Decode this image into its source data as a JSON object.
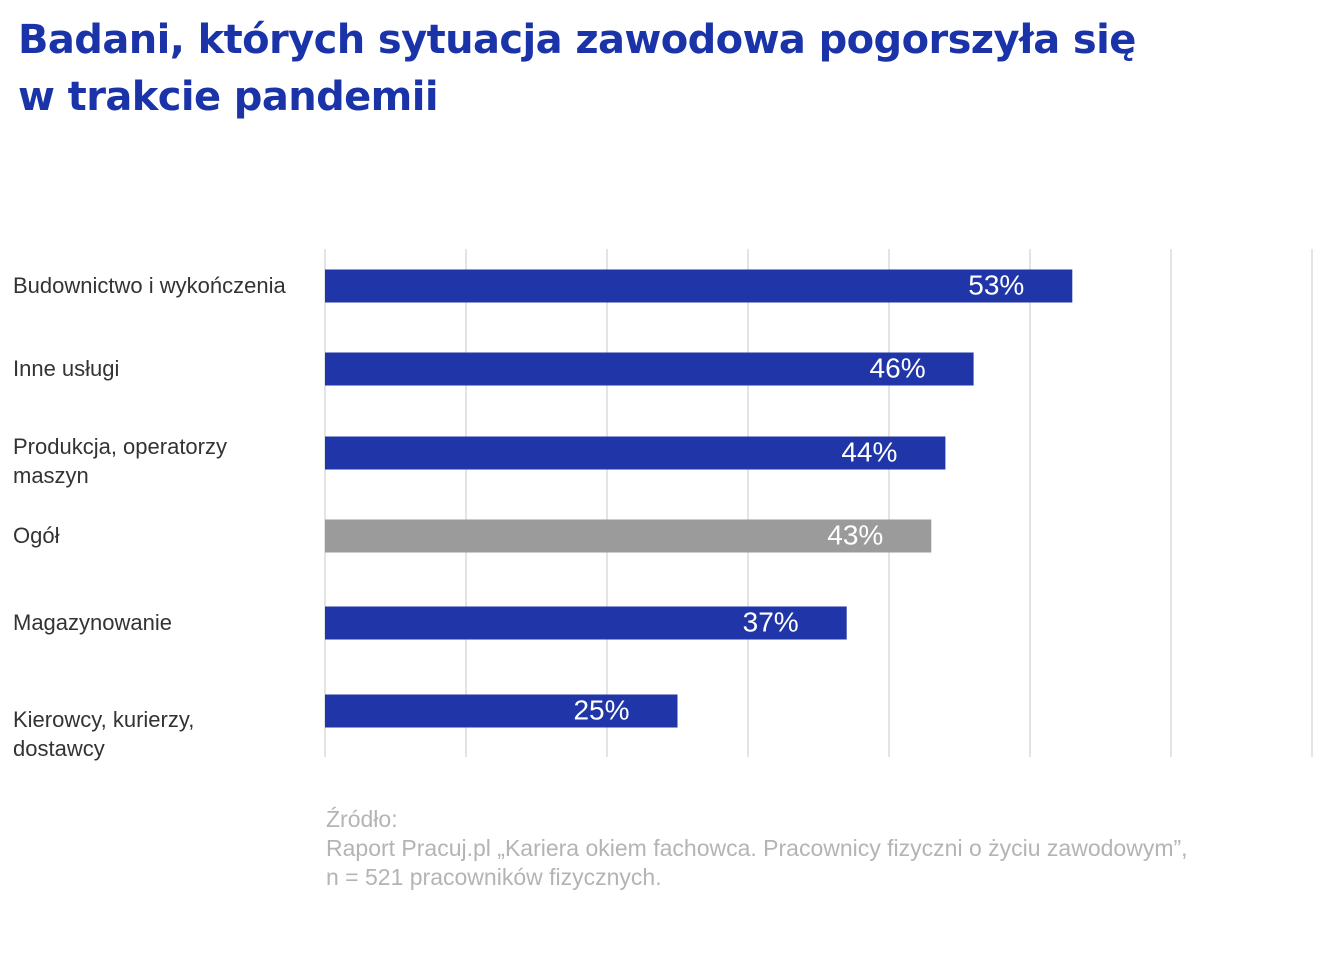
{
  "title": {
    "line1": "Badani, których sytuacja zawodowa pogorszyła się",
    "line2": "w trakcie pandemii"
  },
  "colors": {
    "title": "#1a33a8",
    "bar": "#1f35a8",
    "bar_highlight": "#9b9b9b",
    "grid": "#d9d9d9",
    "category_label": "#333333",
    "value_label": "#ffffff",
    "source": "#b4b4b4"
  },
  "chart_data": {
    "type": "bar",
    "orientation": "horizontal",
    "categories": [
      [
        "Budownictwo i wykończenia"
      ],
      [
        "Inne usługi"
      ],
      [
        "Produkcja, operatorzy",
        "maszyn"
      ],
      [
        "Ogół"
      ],
      [
        "Magazynowanie"
      ],
      [
        "Kierowcy, kurierzy,",
        "dostawcy"
      ]
    ],
    "values": [
      53,
      46,
      44,
      43,
      37,
      25
    ],
    "value_labels": [
      "53%",
      "46%",
      "44%",
      "43%",
      "37%",
      "25%"
    ],
    "highlight_index": 3,
    "xlim": [
      0,
      70
    ],
    "grid_step": 10,
    "grid": true,
    "xlabel": "",
    "ylabel": ""
  },
  "source": {
    "line1": "Źródło:",
    "line2": "Raport Pracuj.pl „Kariera okiem fachowca. Pracownicy fizyczni o życiu zawodowym”,",
    "line3": "n = 521 pracowników fizycznych."
  }
}
